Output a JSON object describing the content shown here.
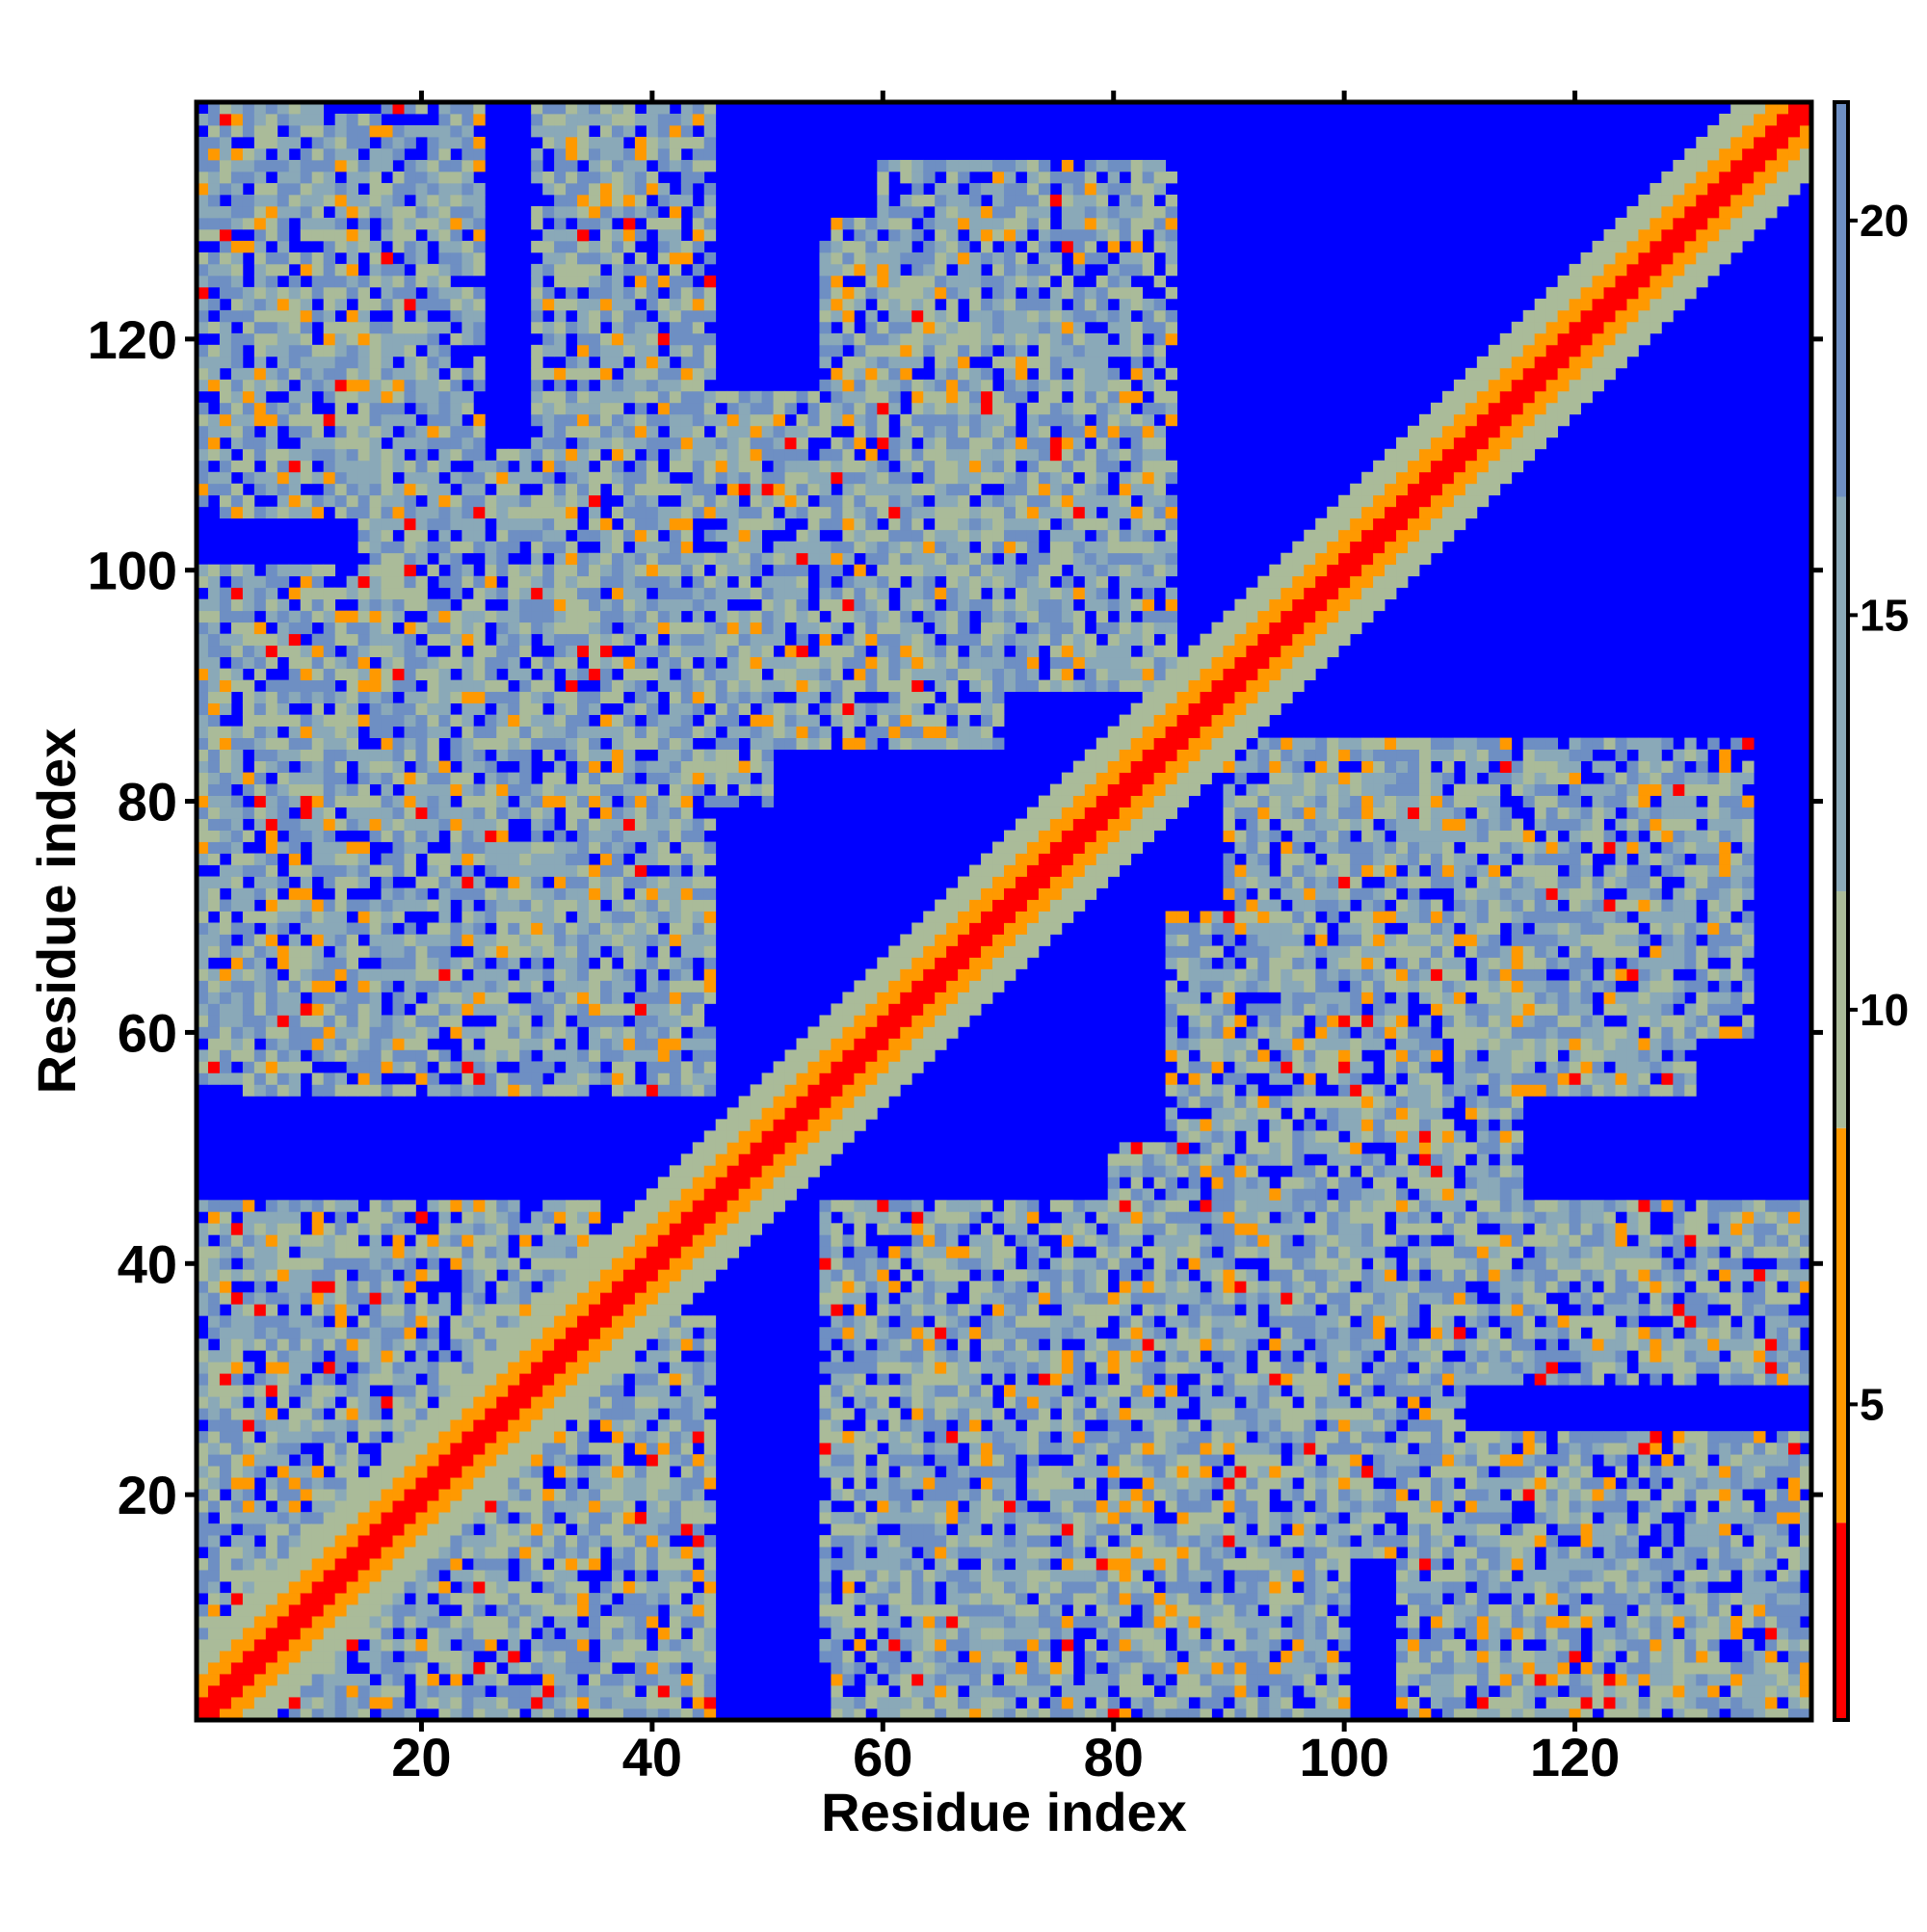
{
  "chart_data": {
    "type": "heatmap",
    "title": "",
    "xlabel": "Residue index",
    "ylabel": "Residue index",
    "n_residues": 140,
    "xlim": [
      1,
      140
    ],
    "ylim": [
      1,
      140
    ],
    "x_ticks": [
      20,
      40,
      60,
      80,
      100,
      120
    ],
    "y_ticks": [
      20,
      40,
      60,
      80,
      100,
      120
    ],
    "x_tick_labels": [
      "20",
      "40",
      "60",
      "80",
      "100",
      "120"
    ],
    "y_tick_labels": [
      "20",
      "40",
      "60",
      "80",
      "100",
      "120"
    ],
    "colorbar": {
      "range": [
        1,
        21.5
      ],
      "ticks": [
        5,
        10,
        15,
        20
      ],
      "tick_labels": [
        "5",
        "10",
        "15",
        "20"
      ],
      "colors": {
        "very_close": "#ff0000",
        "close": "#ff9900",
        "near": "#aabb99",
        "medium": "#8aa9b8",
        "far": "#6e8fc3",
        "background": "#0000ff"
      }
    },
    "diagonal_band": {
      "contact_residue_offset": 1,
      "close_residue_offset": 3,
      "near_residue_offset": 6
    },
    "contact_regions": [
      {
        "x_range": [
          1,
          15
        ],
        "y_range": [
          112,
          140
        ]
      },
      {
        "x_range": [
          1,
          40
        ],
        "y_range": [
          56,
          100
        ]
      },
      {
        "x_range": [
          1,
          35
        ],
        "y_range": [
          1,
          45
        ]
      },
      {
        "x_range": [
          30,
          70
        ],
        "y_range": [
          85,
          115
        ]
      },
      {
        "x_range": [
          60,
          85
        ],
        "y_range": [
          100,
          135
        ]
      },
      {
        "x_range": [
          55,
          90
        ],
        "y_range": [
          5,
          45
        ]
      },
      {
        "x_range": [
          80,
          110
        ],
        "y_range": [
          15,
          50
        ]
      },
      {
        "x_range": [
          90,
          130
        ],
        "y_range": [
          55,
          85
        ]
      },
      {
        "x_range": [
          105,
          140
        ],
        "y_range": [
          1,
          25
        ]
      },
      {
        "x_range": [
          110,
          140
        ],
        "y_range": [
          30,
          45
        ]
      }
    ]
  }
}
